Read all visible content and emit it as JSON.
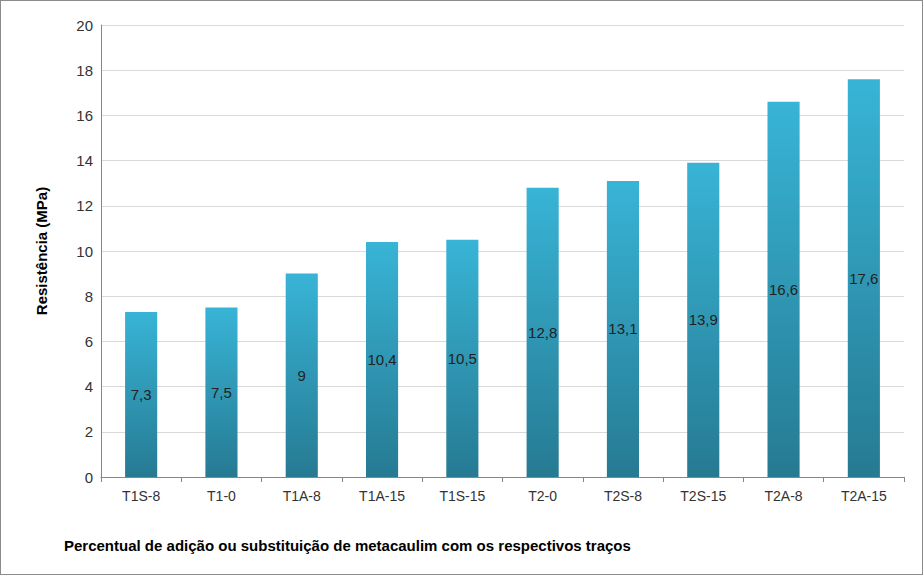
{
  "chart_data": {
    "type": "bar",
    "categories": [
      "T1S-8",
      "T1-0",
      "T1A-8",
      "T1A-15",
      "T1S-15",
      "T2-0",
      "T2S-8",
      "T2S-15",
      "T2A-8",
      "T2A-15"
    ],
    "values": [
      7.3,
      7.5,
      9,
      10.4,
      10.5,
      12.8,
      13.1,
      13.9,
      16.6,
      17.6
    ],
    "value_labels": [
      "7,3",
      "7,5",
      "9",
      "10,4",
      "10,5",
      "12,8",
      "13,1",
      "13,9",
      "16,6",
      "17,6"
    ],
    "color": "#38b4d6",
    "x_label": "Percentual de adição ou substituição de metacaulim com os respectivos traços",
    "y_label": "Resistência (MPa)",
    "ylim": [
      0,
      20
    ],
    "yticks": [
      0,
      2,
      4,
      6,
      8,
      10,
      12,
      14,
      16,
      18,
      20
    ],
    "grid": true,
    "data_labels": true
  }
}
